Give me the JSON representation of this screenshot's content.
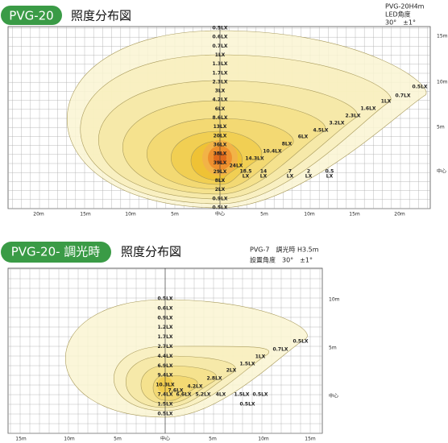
{
  "panel1": {
    "badge": "PVG-20",
    "title": "照度分布図",
    "spec": [
      "PVG-20H4m",
      "LED角度",
      "30°　±1°"
    ],
    "center_labels": [
      "0.5LX",
      "0.6LX",
      "0.7LX",
      "1LX",
      "1.3LX",
      "1.7LX",
      "2.3LX",
      "3LX",
      "4.2LX",
      "6LX",
      "8.6LX",
      "13LX",
      "20LX",
      "36LX",
      "38LX",
      "39LX",
      "29LX",
      "8LX",
      "2LX",
      "0.9LX",
      "0.5LX"
    ],
    "ray_labels": [
      "0.5LX",
      "0.7LX",
      "1LX",
      "1.6LX",
      "2.3LX",
      "3.2LX",
      "4.5LX",
      "6LX",
      "8LX",
      "10.4LX",
      "14.3LX",
      "24LX"
    ],
    "floor_labels": [
      {
        "value": "18.5",
        "unit": "LX"
      },
      {
        "value": "14",
        "unit": "LX"
      },
      {
        "value": "7",
        "unit": "LX"
      },
      {
        "value": "2",
        "unit": "LX"
      },
      {
        "value": "0.5",
        "unit": "LX"
      }
    ],
    "x_axis": [
      "20m",
      "15m",
      "10m",
      "5m",
      "中心",
      "5m",
      "10m",
      "15m",
      "20m"
    ],
    "y_axis": [
      "15m",
      "10m",
      "5m",
      "中心"
    ]
  },
  "panel2": {
    "badge": "PVG-20- 調光時",
    "title": "照度分布図",
    "spec": [
      "PVG-7　調光時 H3.5m",
      "設置角度　30°　±1°"
    ],
    "center_labels": [
      "0.5LX",
      "0.6LX",
      "0.9LX",
      "1.2LX",
      "1.7LX",
      "2.7LX",
      "4.4LX",
      "6.9LX",
      "9.4LX",
      "10.3LX",
      "7.4LX",
      "1.5LX",
      "0.5LX"
    ],
    "ray_labels": [
      "0.5LX",
      "0.7LX",
      "1LX",
      "1.5LX",
      "2LX",
      "2.8LX",
      "4.2LX",
      "7.6LX"
    ],
    "floor_labels": [
      "6.6LX",
      "5.2LX",
      "4LX",
      "1.5LX",
      "0.5LX",
      "0.5LX"
    ],
    "x_axis": [
      "15m",
      "10m",
      "5m",
      "中心",
      "5m",
      "10m",
      "15m"
    ],
    "y_axis": [
      "10m",
      "5m",
      "中心"
    ]
  }
}
